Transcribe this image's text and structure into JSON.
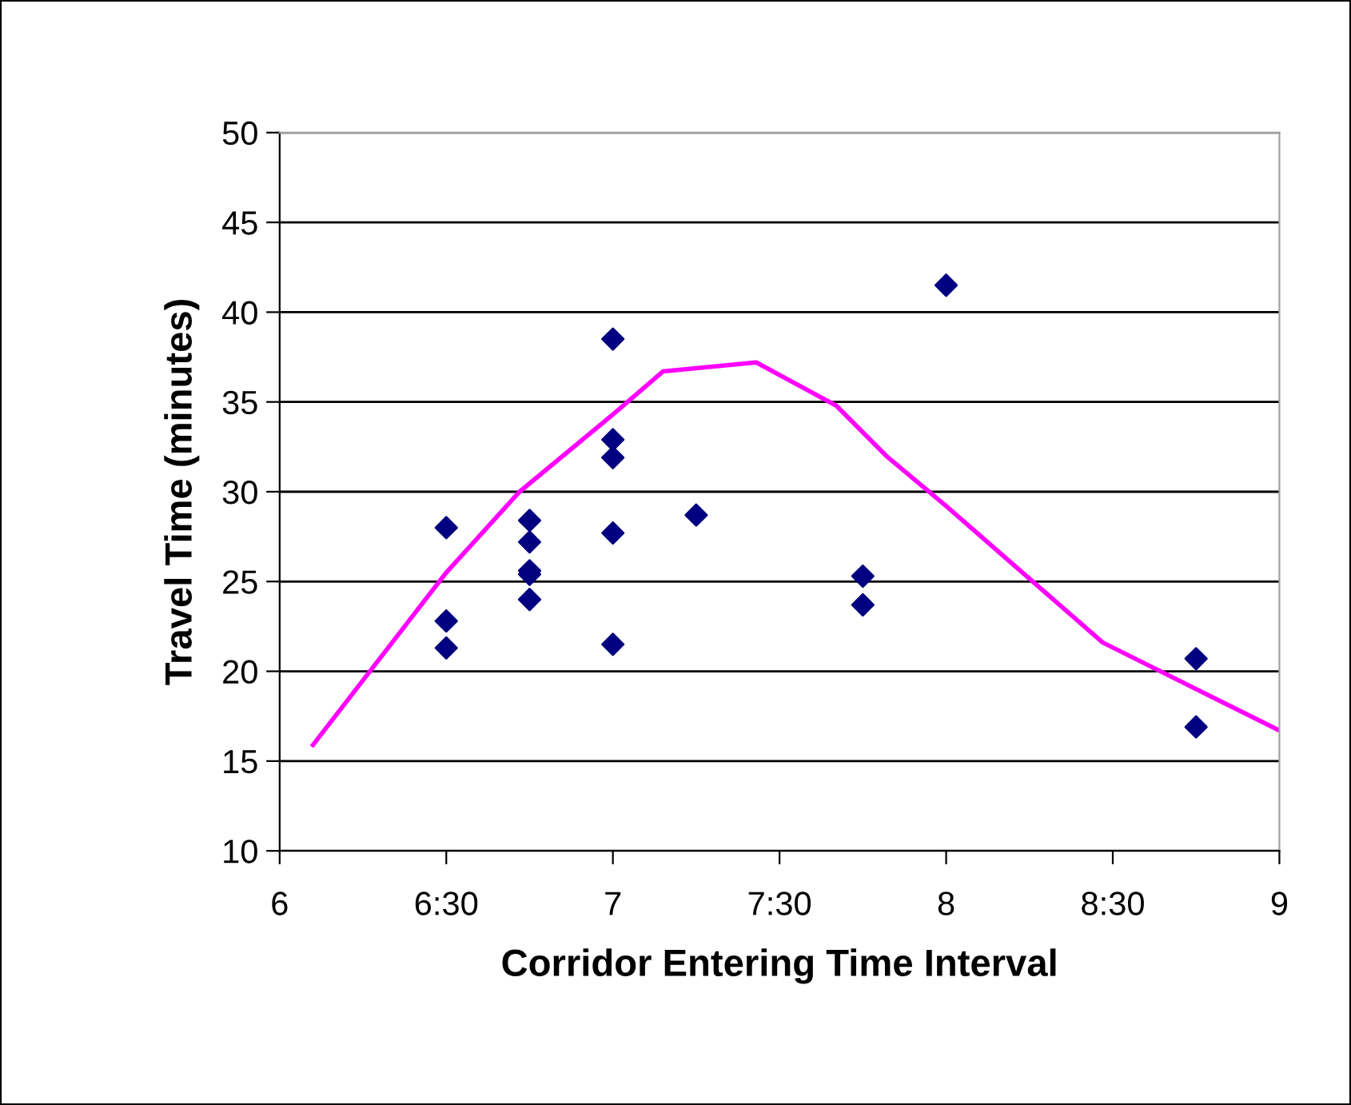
{
  "chart_data": {
    "type": "scatter",
    "xlabel": "Corridor Entering Time Interval",
    "ylabel": "Travel Time (minutes)",
    "xlim": [
      6,
      9
    ],
    "xticks": [
      {
        "value": 6,
        "label": "6"
      },
      {
        "value": 6.5,
        "label": "6:30"
      },
      {
        "value": 7,
        "label": "7"
      },
      {
        "value": 7.5,
        "label": "7:30"
      },
      {
        "value": 8,
        "label": "8"
      },
      {
        "value": 8.5,
        "label": "8:30"
      },
      {
        "value": 9,
        "label": "9"
      }
    ],
    "ylim": [
      10,
      50
    ],
    "yticks": [
      10,
      15,
      20,
      25,
      30,
      35,
      40,
      45,
      50
    ],
    "grid": "y",
    "series": [
      {
        "color": "#000080",
        "marker": "diamond",
        "x": [
          6.5,
          6.5,
          6.5,
          6.75,
          6.75,
          6.75,
          6.75,
          6.75,
          7,
          7,
          7,
          7,
          7,
          7.25,
          7.75,
          7.75,
          8,
          8.75,
          8.75
        ],
        "values": [
          28.0,
          22.8,
          21.3,
          28.4,
          27.2,
          25.6,
          25.4,
          24.0,
          38.5,
          32.9,
          31.9,
          27.7,
          21.5,
          28.7,
          25.3,
          23.7,
          41.5,
          20.7,
          16.9
        ]
      },
      {
        "type": "line",
        "color": "#ff00ff",
        "marker": "none",
        "line_style": "solid",
        "x": [
          6.1,
          6.5,
          6.72,
          7.0,
          7.15,
          7.43,
          7.67,
          7.82,
          8.0,
          8.47,
          9.0
        ],
        "values": [
          15.9,
          25.5,
          30.0,
          34.3,
          36.7,
          37.2,
          34.8,
          32.0,
          29.2,
          21.6,
          16.7
        ]
      }
    ]
  }
}
